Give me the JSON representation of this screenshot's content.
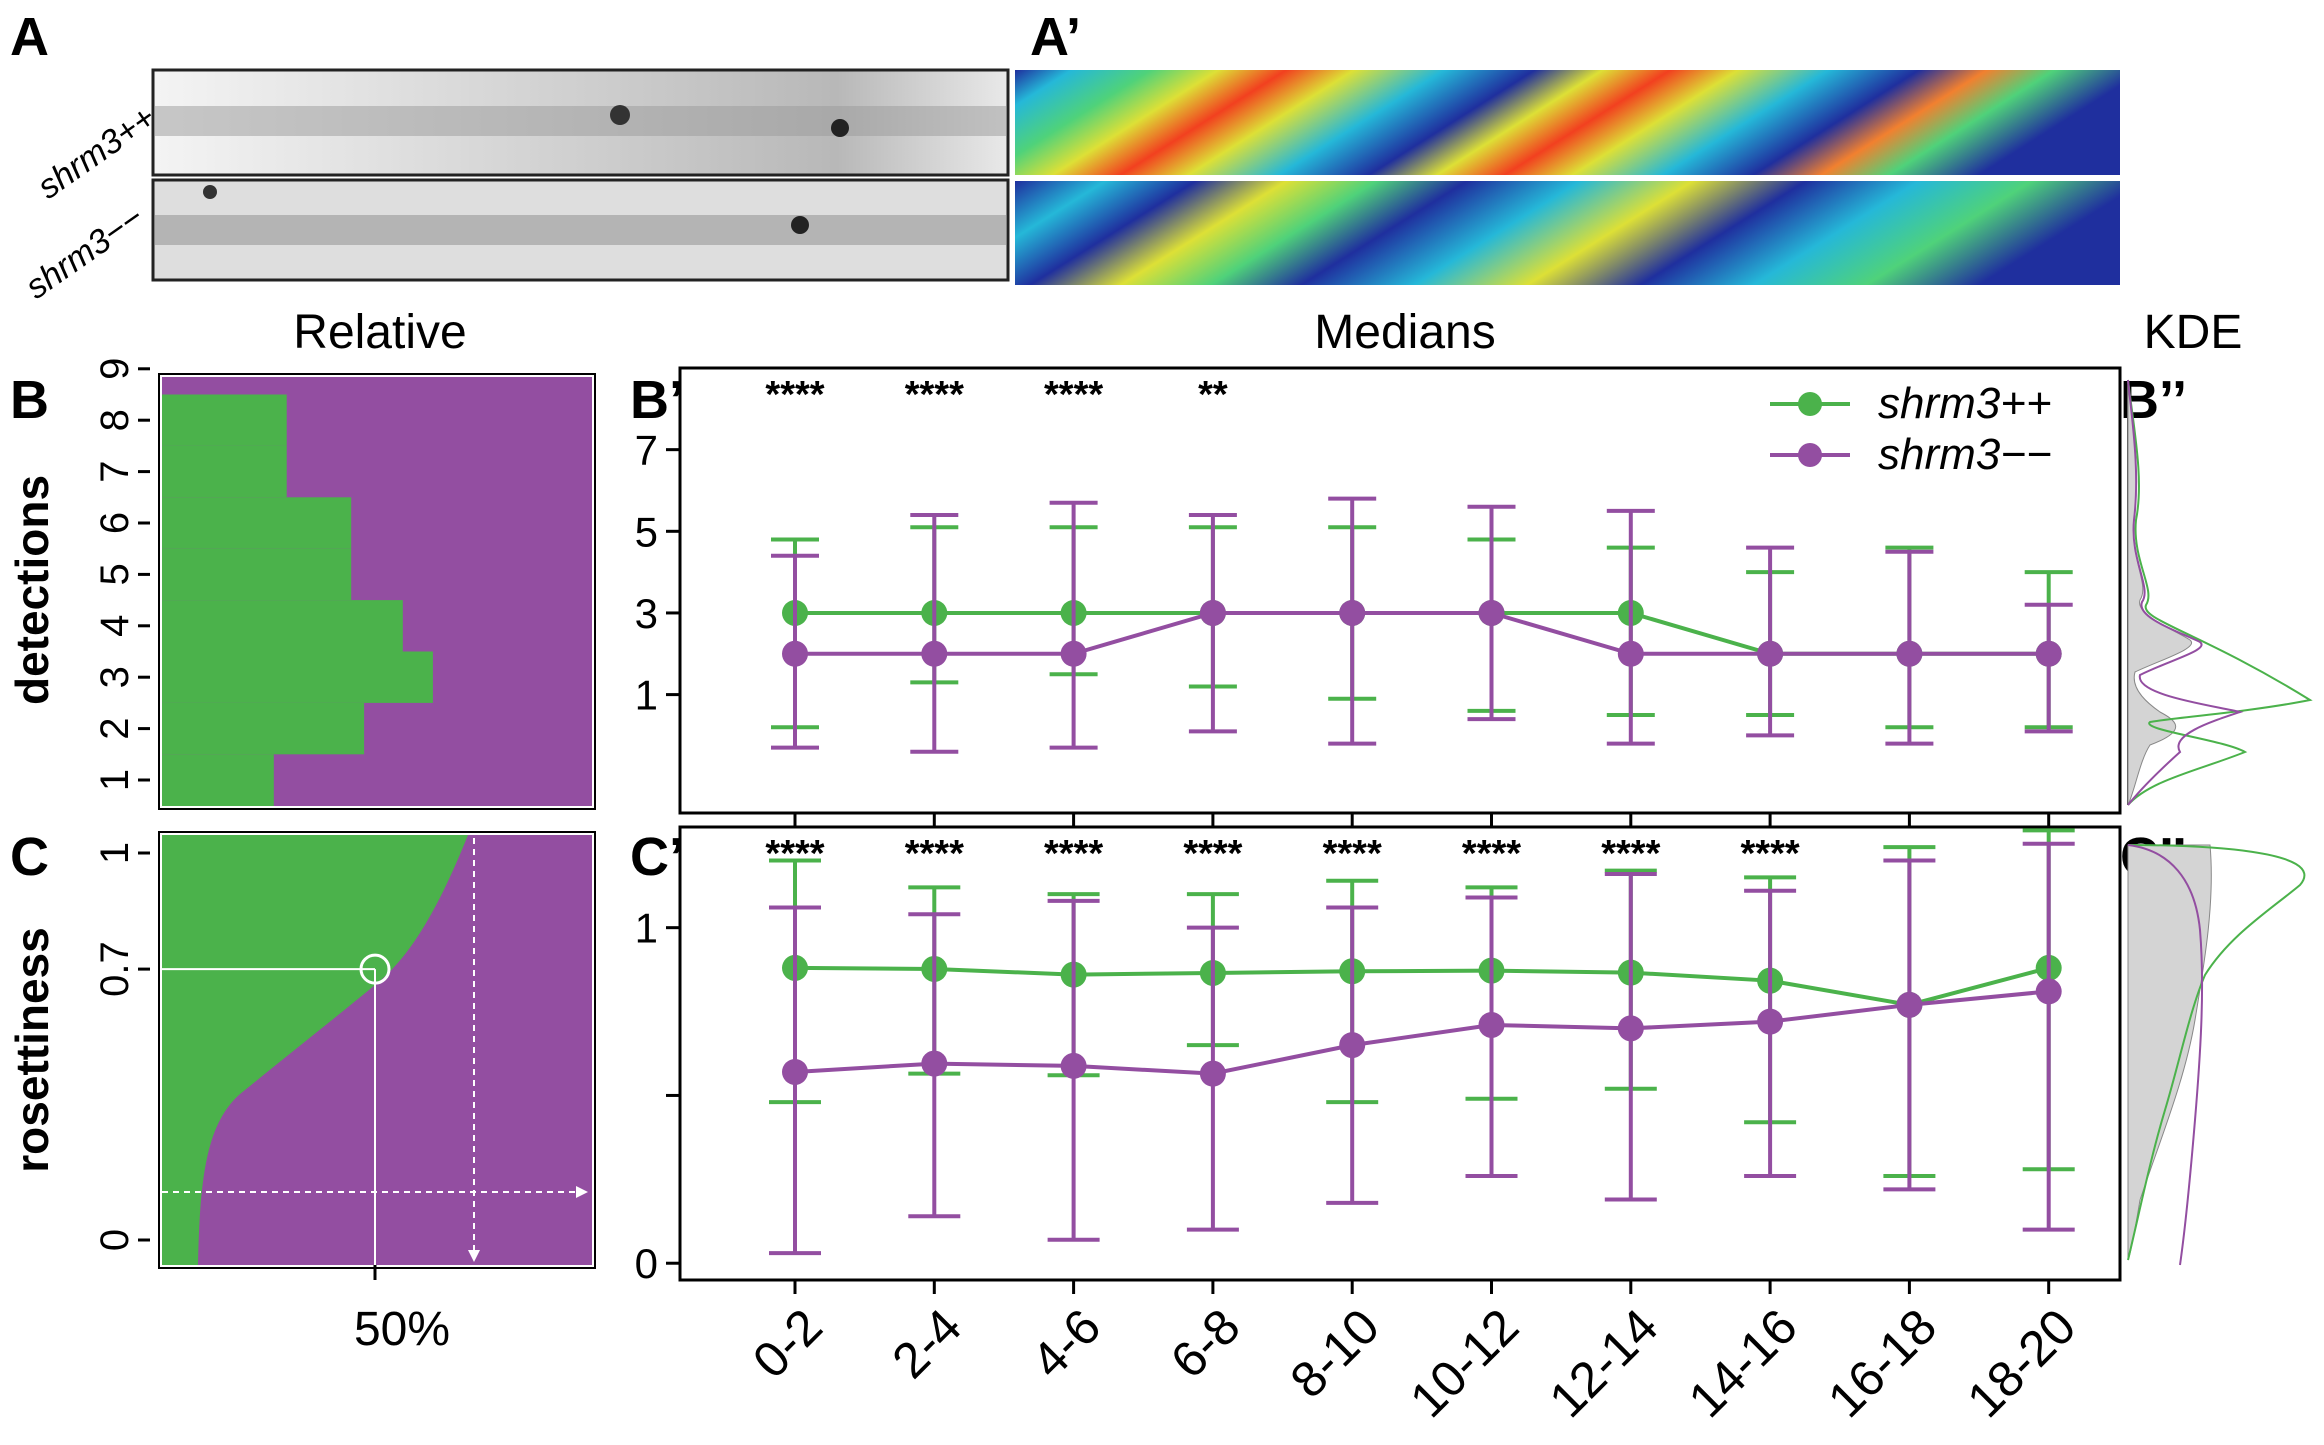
{
  "colors": {
    "green": "#4bb24b",
    "purple": "#934ea1",
    "kde_fill": "#d4d4d4",
    "heat": [
      "#1f2f9e",
      "#25b8d8",
      "#dde036",
      "#f2401f"
    ]
  },
  "labels": {
    "A": "A",
    "A_prime": "A’",
    "B": "B",
    "B_prime": "B’",
    "B_dprime": "B’’",
    "C": "C",
    "C_prime": "C’",
    "C_dprime": "C’’",
    "relative": "Relative",
    "medians": "Medians",
    "kde": "KDE",
    "row_top": "shrm3++",
    "row_bottom": "shrm3−−",
    "detections": "detections",
    "rosettiness": "rosettiness",
    "fifty": "50%"
  },
  "chart_data": [
    {
      "panel": "B",
      "type": "area",
      "title": "Relative",
      "ylabel": "detections",
      "yticks": [
        "1",
        "2",
        "3",
        "4",
        "5",
        "6",
        "7",
        "8",
        "9"
      ],
      "green_fraction": [
        0.26,
        0.47,
        0.63,
        0.56,
        0.44,
        0.44,
        0.29,
        0.29,
        0.0
      ]
    },
    {
      "panel": "B'",
      "type": "line",
      "categories": [
        "0-2",
        "2-4",
        "4-6",
        "6-8",
        "8-10",
        "10-12",
        "12-14",
        "14-16",
        "16-18",
        "18-20"
      ],
      "ylim": [
        -1.9,
        9.0
      ],
      "yticks": [
        "1",
        "3",
        "5",
        "7"
      ],
      "significance": [
        "****",
        "****",
        "****",
        "**",
        "",
        "",
        "",
        "",
        "",
        ""
      ],
      "series": [
        {
          "name": "shrm3++",
          "median": [
            3,
            3,
            3,
            3,
            3,
            3,
            3,
            2,
            2,
            2
          ],
          "low": [
            0.2,
            1.3,
            1.5,
            1.2,
            0.9,
            0.6,
            0.5,
            0.5,
            0.2,
            0.2
          ],
          "high": [
            4.8,
            5.1,
            5.1,
            5.1,
            5.1,
            4.8,
            4.6,
            4.0,
            4.6,
            4.0
          ]
        },
        {
          "name": "shrm3−−",
          "median": [
            2,
            2,
            2,
            3,
            3,
            3,
            2,
            2,
            2,
            2
          ],
          "low": [
            -0.3,
            -0.4,
            -0.3,
            0.1,
            -0.2,
            0.4,
            -0.2,
            0.0,
            -0.2,
            0.1
          ],
          "high": [
            4.4,
            5.4,
            5.7,
            5.4,
            5.8,
            5.6,
            5.5,
            4.6,
            4.5,
            3.2
          ]
        }
      ]
    },
    {
      "panel": "C",
      "type": "area",
      "title": "",
      "ylabel": "rosettiness",
      "yticks": [
        "0",
        "0.7",
        "1"
      ],
      "xtick": "50%",
      "annotation": {
        "value": 0.7,
        "quantile": 0.5
      }
    },
    {
      "panel": "C'",
      "type": "line",
      "categories": [
        "0-2",
        "2-4",
        "4-6",
        "6-8",
        "8-10",
        "10-12",
        "12-14",
        "14-16",
        "16-18",
        "18-20"
      ],
      "ylim": [
        -0.05,
        1.3
      ],
      "yticks": [
        "0",
        "",
        "1"
      ],
      "significance": [
        "****",
        "****",
        "****",
        "****",
        "****",
        "****",
        "****",
        "****",
        "",
        ""
      ],
      "series": [
        {
          "name": "shrm3++",
          "median": [
            0.88,
            0.877,
            0.86,
            0.865,
            0.87,
            0.872,
            0.866,
            0.842,
            0.77,
            0.88
          ],
          "low": [
            0.48,
            0.565,
            0.56,
            0.65,
            0.48,
            0.49,
            0.52,
            0.42,
            0.26,
            0.28
          ],
          "high": [
            1.2,
            1.12,
            1.1,
            1.1,
            1.14,
            1.12,
            1.17,
            1.15,
            1.24,
            1.29
          ]
        },
        {
          "name": "shrm3−−",
          "median": [
            0.57,
            0.595,
            0.588,
            0.565,
            0.65,
            0.71,
            0.7,
            0.72,
            0.77,
            0.81
          ],
          "low": [
            0.03,
            0.14,
            0.07,
            0.1,
            0.18,
            0.26,
            0.19,
            0.26,
            0.22,
            0.1
          ],
          "high": [
            1.06,
            1.04,
            1.08,
            1.0,
            1.06,
            1.09,
            1.16,
            1.11,
            1.2,
            1.25
          ]
        }
      ]
    }
  ]
}
